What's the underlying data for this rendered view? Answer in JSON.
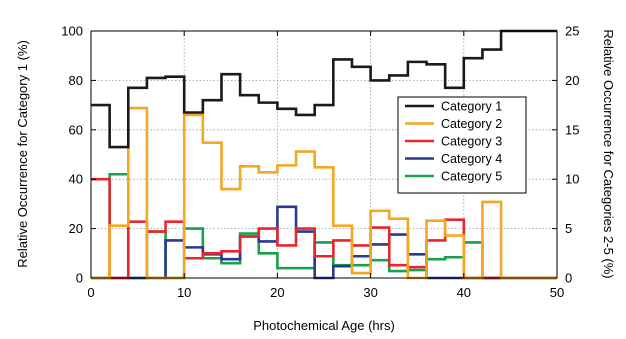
{
  "chart_data": {
    "type": "line",
    "step": true,
    "xlabel": "Photochemical Age (hrs)",
    "ylabel_left": "Relative Occurrence for Category 1 (%)",
    "ylabel_right": "Relative Occurrence for Categories 2-5 (%)",
    "xlim": [
      0,
      50
    ],
    "ylim_left": [
      0,
      100
    ],
    "ylim_right": [
      0,
      25
    ],
    "x_ticks": [
      "0",
      "10",
      "20",
      "30",
      "40",
      "50"
    ],
    "y_left_ticks": [
      "0",
      "20",
      "40",
      "60",
      "80",
      "100"
    ],
    "y_right_ticks": [
      "0",
      "5",
      "10",
      "15",
      "20",
      "25"
    ],
    "grid": true,
    "legend_position": "right",
    "series": [
      {
        "name": "Category 1",
        "axis": "left",
        "color": "#1a1a1a",
        "values": [
          70,
          53,
          77,
          81,
          81.5,
          67,
          72,
          82.5,
          74,
          71,
          68.5,
          66,
          70,
          88.5,
          85.5,
          80,
          82,
          87.5,
          86.5,
          77,
          89,
          92.5,
          100,
          100,
          100
        ]
      },
      {
        "name": "Category 2",
        "axis": "right",
        "color": "#f5a623",
        "values": [
          0,
          5.3,
          17.2,
          0,
          0,
          16.5,
          13.7,
          9,
          11.3,
          10.7,
          11.4,
          12.8,
          11.2,
          5.3,
          0.5,
          6.8,
          6,
          0,
          5.8,
          4.3,
          0,
          7.7,
          0,
          0,
          0
        ]
      },
      {
        "name": "Category 3",
        "axis": "right",
        "color": "#e8262d",
        "values": [
          10,
          0,
          5.7,
          4.7,
          5.7,
          2,
          2.5,
          2.7,
          4.2,
          5,
          3.3,
          5,
          2.2,
          3.8,
          3.3,
          5.1,
          1.3,
          1.1,
          3.8,
          5.9,
          0,
          0,
          0,
          0,
          0
        ]
      },
      {
        "name": "Category 4",
        "axis": "right",
        "color": "#2b3990",
        "values": [
          0,
          0,
          0,
          0,
          3.8,
          3.1,
          2.4,
          1.9,
          4.2,
          3.7,
          7.2,
          4.7,
          0,
          1.2,
          2.2,
          3.4,
          4.4,
          2.4,
          0,
          0,
          0,
          0,
          0,
          0,
          0
        ]
      },
      {
        "name": "Category 5",
        "axis": "right",
        "color": "#18a14a",
        "values": [
          0,
          10.5,
          0,
          4.7,
          0,
          5,
          2,
          1.5,
          4.5,
          2.5,
          1,
          1,
          3.6,
          1.3,
          1.3,
          1.8,
          0.7,
          0.8,
          1.9,
          2.1,
          3.6,
          0,
          0,
          0,
          0
        ]
      }
    ]
  }
}
